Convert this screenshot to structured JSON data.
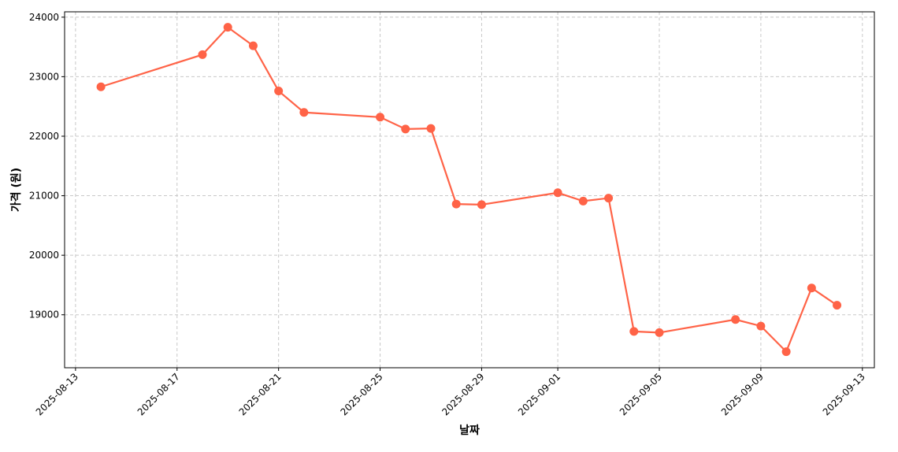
{
  "chart_data": {
    "type": "line",
    "x_label": "날짜",
    "y_label": "가격 (원)",
    "x": [
      "2025-08-14",
      "2025-08-18",
      "2025-08-19",
      "2025-08-20",
      "2025-08-21",
      "2025-08-22",
      "2025-08-25",
      "2025-08-26",
      "2025-08-27",
      "2025-08-28",
      "2025-08-29",
      "2025-09-01",
      "2025-09-02",
      "2025-09-03",
      "2025-09-04",
      "2025-09-05",
      "2025-09-08",
      "2025-09-09",
      "2025-09-10",
      "2025-09-11",
      "2025-09-12"
    ],
    "series": [
      {
        "color": "#ff6347",
        "values": [
          22830,
          23370,
          23830,
          23520,
          22760,
          22400,
          22320,
          22120,
          22130,
          20860,
          20850,
          21050,
          20910,
          20960,
          18720,
          18700,
          18920,
          18810,
          18380,
          19450,
          19160
        ]
      }
    ],
    "xlim": [
      "2025-08-12T13:40",
      "2025-09-13T11:20"
    ],
    "xticks": [
      "2025-08-13",
      "2025-08-17",
      "2025-08-21",
      "2025-08-25",
      "2025-08-29",
      "2025-09-01",
      "2025-09-05",
      "2025-09-09",
      "2025-09-13"
    ],
    "ylim": [
      18110,
      24090
    ],
    "yticks": [
      19000,
      20000,
      21000,
      22000,
      23000,
      24000
    ],
    "grid": true
  }
}
